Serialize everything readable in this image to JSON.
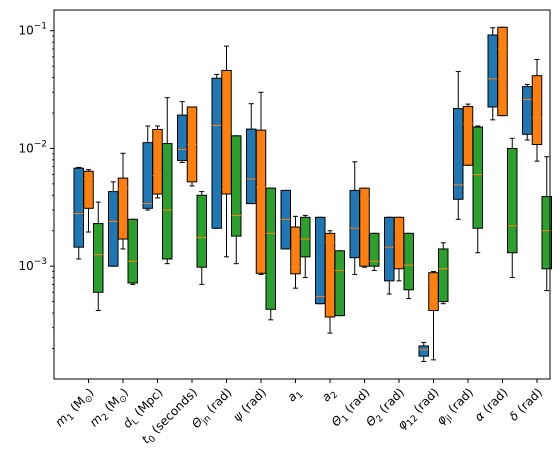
{
  "chart_data": {
    "type": "boxplot",
    "y_scale": "log",
    "ylim": [
      0.00011,
      0.15
    ],
    "grid": false,
    "legend": "none",
    "y_ticks": [
      {
        "value": 0.001,
        "base": "10",
        "exp": "−3"
      },
      {
        "value": 0.01,
        "base": "10",
        "exp": "−2"
      },
      {
        "value": 0.1,
        "base": "10",
        "exp": "−1"
      }
    ],
    "categories": [
      {
        "pre": "m",
        "sub": "1",
        "post": " (M",
        "sym": "⊙",
        "tail": ")"
      },
      {
        "pre": "m",
        "sub": "2",
        "post": " (M",
        "sym": "⊙",
        "tail": ")"
      },
      {
        "pre": "d",
        "sub": "L",
        "post": " (Mpc)",
        "sym": "",
        "tail": ""
      },
      {
        "pre": "t",
        "sub": "0",
        "post": " (seconds)",
        "sym": "",
        "tail": ""
      },
      {
        "pre": "Θ",
        "sub": "jn",
        "post": " (rad)",
        "sym": "",
        "tail": ""
      },
      {
        "pre": "ψ",
        "sub": "",
        "post": " (rad)",
        "sym": "",
        "tail": ""
      },
      {
        "pre": "a",
        "sub": "1",
        "post": "",
        "sym": "",
        "tail": ""
      },
      {
        "pre": "a",
        "sub": "2",
        "post": "",
        "sym": "",
        "tail": ""
      },
      {
        "pre": "Θ",
        "sub": "1",
        "post": " (rad)",
        "sym": "",
        "tail": ""
      },
      {
        "pre": "Θ",
        "sub": "2",
        "post": " (rad)",
        "sym": "",
        "tail": ""
      },
      {
        "pre": "φ",
        "sub": "12",
        "post": " (rad)",
        "sym": "",
        "tail": ""
      },
      {
        "pre": "φ",
        "sub": "jl",
        "post": " (rad)",
        "sym": "",
        "tail": ""
      },
      {
        "pre": "α",
        "sub": "",
        "post": " (rad)",
        "sym": "",
        "tail": ""
      },
      {
        "pre": "δ",
        "sub": "",
        "post": " (rad)",
        "sym": "",
        "tail": ""
      }
    ],
    "series_colors": [
      "#1f77b4",
      "#ff7f0e",
      "#2ca02c"
    ],
    "median_color": "#ff7f0e",
    "series": [
      {
        "color": "#1f77b4",
        "boxes": [
          {
            "whislo": 0.00115,
            "q1": 0.00145,
            "med": 0.0028,
            "q3": 0.0068,
            "whishi": 0.0069
          },
          {
            "whislo": 0.001,
            "q1": 0.001,
            "med": 0.0024,
            "q3": 0.0043,
            "whishi": 0.0052
          },
          {
            "whislo": 0.003,
            "q1": 0.0031,
            "med": 0.0034,
            "q3": 0.0112,
            "whishi": 0.0155
          },
          {
            "whislo": 0.0076,
            "q1": 0.0079,
            "med": 0.0098,
            "q3": 0.0192,
            "whishi": 0.025
          },
          {
            "whislo": 0.0021,
            "q1": 0.0021,
            "med": 0.0157,
            "q3": 0.0395,
            "whishi": 0.0425
          },
          {
            "whislo": 0.0034,
            "q1": 0.0034,
            "med": 0.0055,
            "q3": 0.0146,
            "whishi": 0.024
          },
          {
            "whislo": 0.0014,
            "q1": 0.0014,
            "med": 0.0025,
            "q3": 0.0044,
            "whishi": 0.0044
          },
          {
            "whislo": 0.00048,
            "q1": 0.00048,
            "med": 0.00055,
            "q3": 0.0026,
            "whishi": 0.0026
          },
          {
            "whislo": 0.00085,
            "q1": 0.00118,
            "med": 0.0021,
            "q3": 0.0044,
            "whishi": 0.0077
          },
          {
            "whislo": 0.00058,
            "q1": 0.00075,
            "med": 0.00145,
            "q3": 0.0026,
            "whishi": 0.0026
          },
          {
            "whislo": 0.000155,
            "q1": 0.000172,
            "med": 0.000195,
            "q3": 0.00021,
            "whishi": 0.000225
          },
          {
            "whislo": 0.0025,
            "q1": 0.0037,
            "med": 0.0049,
            "q3": 0.0218,
            "whishi": 0.045
          },
          {
            "whislo": 0.0175,
            "q1": 0.0225,
            "med": 0.039,
            "q3": 0.092,
            "whishi": 0.106
          },
          {
            "whislo": 0.0118,
            "q1": 0.0132,
            "med": 0.026,
            "q3": 0.0335,
            "whishi": 0.035
          }
        ]
      },
      {
        "color": "#ff7f0e",
        "boxes": [
          {
            "whislo": 0.00195,
            "q1": 0.0031,
            "med": 0.0055,
            "q3": 0.0064,
            "whishi": 0.0066
          },
          {
            "whislo": 0.0014,
            "q1": 0.0017,
            "med": 0.0046,
            "q3": 0.0056,
            "whishi": 0.0091
          },
          {
            "whislo": 0.0038,
            "q1": 0.0041,
            "med": 0.0059,
            "q3": 0.0145,
            "whishi": 0.0155
          },
          {
            "whislo": 0.0048,
            "q1": 0.0052,
            "med": 0.0108,
            "q3": 0.0225,
            "whishi": 0.0225
          },
          {
            "whislo": 0.0012,
            "q1": 0.0041,
            "med": 0.0045,
            "q3": 0.046,
            "whishi": 0.074
          },
          {
            "whislo": 0.00085,
            "q1": 0.00087,
            "med": 0.0047,
            "q3": 0.0143,
            "whishi": 0.03
          },
          {
            "whislo": 0.00065,
            "q1": 0.00086,
            "med": 0.00098,
            "q3": 0.00215,
            "whishi": 0.00265
          },
          {
            "whislo": 0.00027,
            "q1": 0.00037,
            "med": 0.0016,
            "q3": 0.0019,
            "whishi": 0.002
          },
          {
            "whislo": 0.00098,
            "q1": 0.001,
            "med": 0.0037,
            "q3": 0.0046,
            "whishi": 0.0046
          },
          {
            "whislo": 0.00075,
            "q1": 0.00095,
            "med": 0.00158,
            "q3": 0.0026,
            "whishi": 0.0026
          },
          {
            "whislo": 0.00016,
            "q1": 0.00042,
            "med": 0.00073,
            "q3": 0.00088,
            "whishi": 0.0009
          },
          {
            "whislo": 0.0072,
            "q1": 0.0072,
            "med": 0.0163,
            "q3": 0.0227,
            "whishi": 0.0238
          },
          {
            "whislo": 0.019,
            "q1": 0.019,
            "med": 0.071,
            "q3": 0.107,
            "whishi": 0.107
          },
          {
            "whislo": 0.0078,
            "q1": 0.0108,
            "med": 0.0182,
            "q3": 0.0415,
            "whishi": 0.057
          }
        ]
      },
      {
        "color": "#2ca02c",
        "boxes": [
          {
            "whislo": 0.00042,
            "q1": 0.0006,
            "med": 0.00125,
            "q3": 0.0023,
            "whishi": 0.0035
          },
          {
            "whislo": 0.0007,
            "q1": 0.00072,
            "med": 0.0011,
            "q3": 0.0025,
            "whishi": 0.0025
          },
          {
            "whislo": 0.00105,
            "q1": 0.00115,
            "med": 0.003,
            "q3": 0.011,
            "whishi": 0.027
          },
          {
            "whislo": 0.0007,
            "q1": 0.00098,
            "med": 0.00175,
            "q3": 0.004,
            "whishi": 0.0043
          },
          {
            "whislo": 0.00105,
            "q1": 0.0018,
            "med": 0.0027,
            "q3": 0.0128,
            "whishi": 0.0128
          },
          {
            "whislo": 0.00035,
            "q1": 0.00043,
            "med": 0.0019,
            "q3": 0.0046,
            "whishi": 0.0046
          },
          {
            "whislo": 0.0008,
            "q1": 0.0012,
            "med": 0.0017,
            "q3": 0.0026,
            "whishi": 0.0027
          },
          {
            "whislo": 0.00038,
            "q1": 0.00038,
            "med": 0.00092,
            "q3": 0.00135,
            "whishi": 0.00135
          },
          {
            "whislo": 0.00092,
            "q1": 0.001,
            "med": 0.0011,
            "q3": 0.0019,
            "whishi": 0.0019
          },
          {
            "whislo": 0.00053,
            "q1": 0.00063,
            "med": 0.00102,
            "q3": 0.0019,
            "whishi": 0.0019
          },
          {
            "whislo": 0.00048,
            "q1": 0.0005,
            "med": 0.00095,
            "q3": 0.0014,
            "whishi": 0.00158
          },
          {
            "whislo": 0.0013,
            "q1": 0.0021,
            "med": 0.006,
            "q3": 0.0152,
            "whishi": 0.0155
          },
          {
            "whislo": 0.0008,
            "q1": 0.0013,
            "med": 0.0022,
            "q3": 0.01,
            "whishi": 0.0122
          },
          {
            "whislo": 0.00062,
            "q1": 0.00095,
            "med": 0.002,
            "q3": 0.0039,
            "whishi": 0.0085
          }
        ]
      }
    ]
  }
}
